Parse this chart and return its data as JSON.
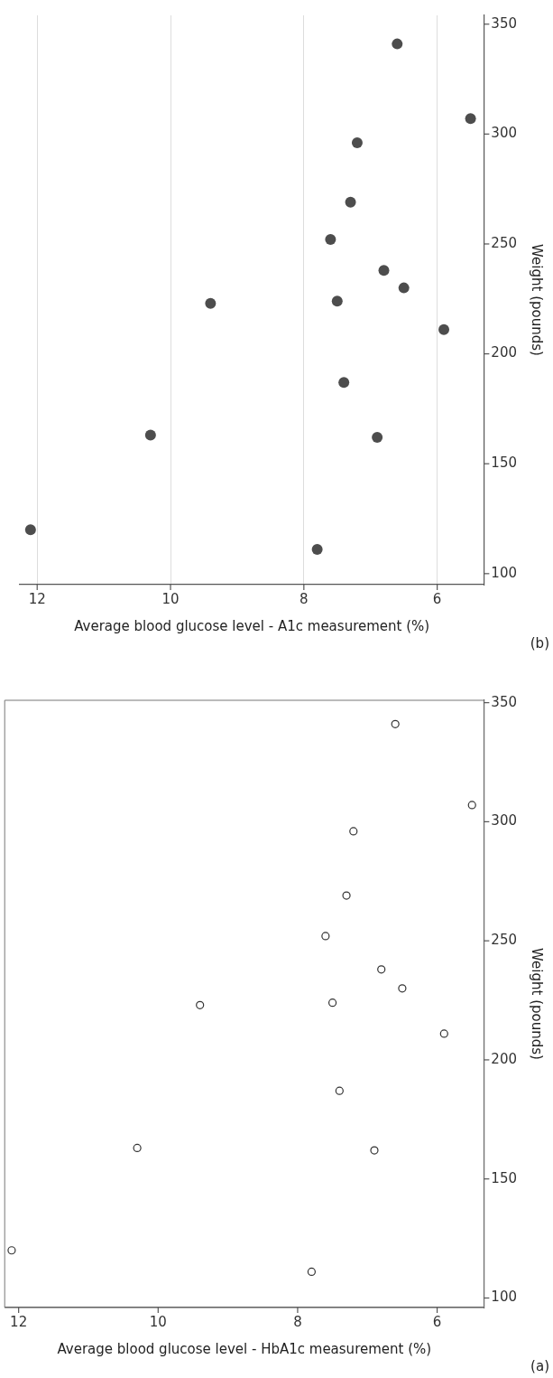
{
  "chart_data": [
    {
      "type": "scatter",
      "xlabel": "Average blood glucose level - A1c measurement (%)",
      "ylabel": "Weight (pounds)",
      "annotations": [
        "(b)"
      ],
      "x": [
        7.8,
        12.1,
        6.9,
        10.3,
        7.4,
        5.9,
        9.4,
        7.5,
        6.5,
        6.8,
        7.6,
        7.3,
        7.2,
        5.5,
        6.6
      ],
      "series": [
        {
          "color": "#4d4d4d",
          "values": [
            111,
            120,
            162,
            163,
            187,
            211,
            223,
            224,
            230,
            238,
            252,
            269,
            296,
            307,
            341
          ]
        }
      ],
      "xlim": [
        12.26,
        5.3
      ],
      "xticks": [
        12,
        10,
        8,
        6
      ],
      "ylim": [
        95,
        354
      ],
      "yticks": [
        100,
        150,
        200,
        250,
        300,
        350
      ],
      "grid": "x",
      "legend": false,
      "marker": "circle"
    },
    {
      "type": "scatter",
      "xlabel": "Average blood glucose level - HbA1c measurement (%)",
      "ylabel": "Weight (pounds)",
      "annotations": [
        "(a)"
      ],
      "x": [
        7.8,
        12.1,
        6.9,
        10.3,
        7.4,
        5.9,
        9.4,
        7.5,
        6.5,
        6.8,
        7.6,
        7.3,
        7.2,
        5.5,
        6.6
      ],
      "series": [
        {
          "color": "#333333",
          "values": [
            111,
            120,
            162,
            163,
            187,
            211,
            223,
            224,
            230,
            238,
            252,
            269,
            296,
            307,
            341
          ]
        }
      ],
      "xlim": [
        12.2,
        5.33
      ],
      "xticks": [
        12,
        10,
        8,
        6
      ],
      "ylim": [
        96,
        351
      ],
      "yticks": [
        100,
        150,
        200,
        250,
        300,
        350
      ],
      "grid": false,
      "legend": false,
      "marker": "circle"
    }
  ]
}
